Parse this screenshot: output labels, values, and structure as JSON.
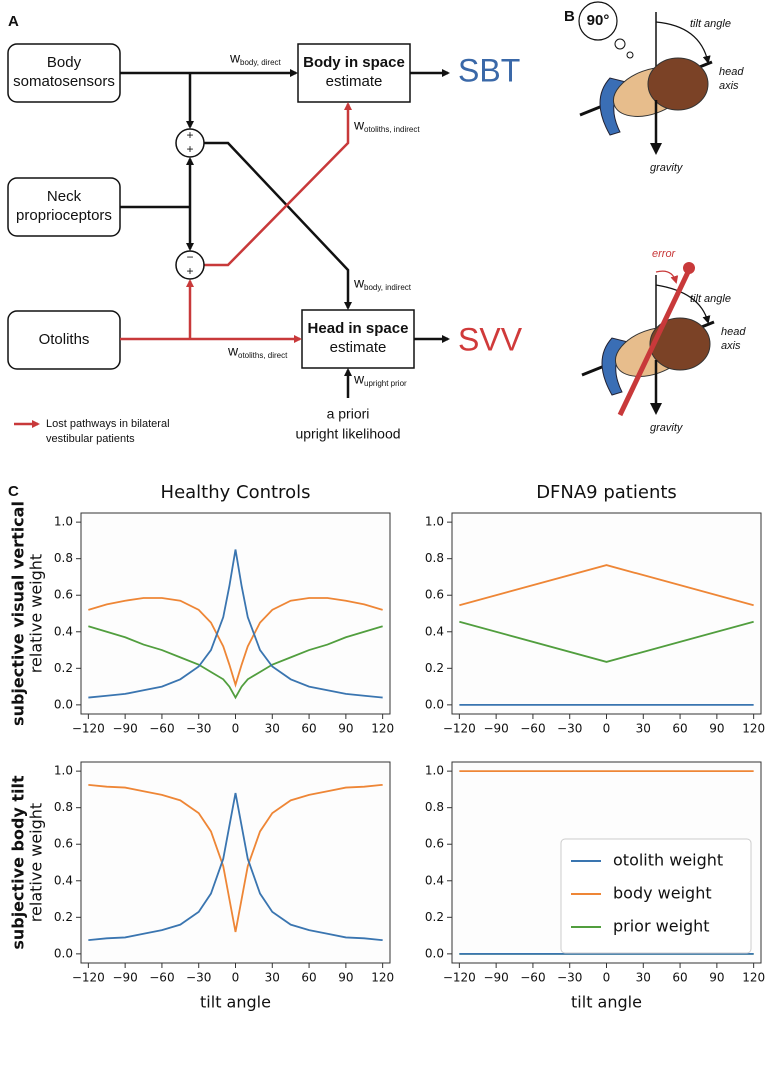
{
  "panel_a": {
    "letter": "A",
    "inputs": [
      [
        "Body",
        "somatosensors"
      ],
      [
        "Neck",
        "proprioceptors"
      ],
      [
        "Otoliths"
      ]
    ],
    "estimates": [
      {
        "bold": "Body in space",
        "text": "estimate",
        "output": "SBT"
      },
      {
        "bold": "Head in space",
        "text": "estimate",
        "output": "SVV"
      }
    ],
    "sum_signs": [
      [
        "+",
        "+"
      ],
      [
        "−",
        "+"
      ]
    ],
    "weights": [
      {
        "w": "w",
        "sub": "body, direct"
      },
      {
        "w": "w",
        "sub": "otoliths, indirect"
      },
      {
        "w": "w",
        "sub": "body, indirect"
      },
      {
        "w": "w",
        "sub": "otoliths, direct"
      },
      {
        "w": "w",
        "sub": "upright prior"
      }
    ],
    "prior": [
      "a priori",
      "upright likelihood"
    ],
    "legend": [
      "Lost pathways in bilateral",
      "vestibular patients"
    ]
  },
  "panel_b": {
    "letter": "B",
    "angle": "90°",
    "top": {
      "tilt": "tilt angle",
      "head_axis": [
        "head",
        "axis"
      ],
      "gravity": "gravity"
    },
    "bottom": {
      "error": "error",
      "tilt": "tilt angle",
      "head_axis": [
        "head",
        "axis"
      ],
      "gravity": "gravity"
    }
  },
  "panel_c": {
    "letter": "C"
  },
  "chart_data": [
    {
      "type": "line",
      "title": "Healthy Controls",
      "ylabel_bold": "subjective visual vertical",
      "ylabel": "relative weight",
      "x": [
        -120,
        -105,
        -90,
        -75,
        -60,
        -45,
        -30,
        -20,
        -10,
        -5,
        0,
        5,
        10,
        20,
        30,
        45,
        60,
        75,
        90,
        105,
        120
      ],
      "series": [
        {
          "name": "otolith weight",
          "color": "#3a75b0",
          "values": [
            0.04,
            0.05,
            0.06,
            0.08,
            0.1,
            0.14,
            0.21,
            0.3,
            0.48,
            0.65,
            0.85,
            0.65,
            0.48,
            0.3,
            0.21,
            0.14,
            0.1,
            0.08,
            0.06,
            0.05,
            0.04
          ]
        },
        {
          "name": "body weight",
          "color": "#ee8636",
          "values": [
            0.52,
            0.55,
            0.57,
            0.585,
            0.585,
            0.57,
            0.52,
            0.45,
            0.32,
            0.22,
            0.11,
            0.22,
            0.32,
            0.45,
            0.52,
            0.57,
            0.585,
            0.585,
            0.57,
            0.55,
            0.52
          ]
        },
        {
          "name": "prior weight",
          "color": "#519e3e",
          "values": [
            0.43,
            0.4,
            0.37,
            0.33,
            0.3,
            0.26,
            0.22,
            0.18,
            0.14,
            0.1,
            0.04,
            0.1,
            0.14,
            0.18,
            0.22,
            0.26,
            0.3,
            0.33,
            0.37,
            0.4,
            0.43
          ]
        }
      ],
      "xlim": [
        -126,
        126
      ],
      "ylim": [
        -0.05,
        1.05
      ],
      "xticks": [
        {
          "value": -120,
          "label": "−120"
        },
        {
          "value": -90,
          "label": "−90"
        },
        {
          "value": -60,
          "label": "−60"
        },
        {
          "value": -30,
          "label": "−30"
        },
        0,
        30,
        60,
        90,
        120
      ],
      "yticks": [
        {
          "value": 0,
          "label": "0.0"
        },
        0.2,
        0.4,
        0.6,
        0.8,
        {
          "value": 1,
          "label": "1.0"
        }
      ]
    },
    {
      "type": "line",
      "title": "DFNA9 patients",
      "x": [
        -120,
        0,
        120
      ],
      "series": [
        {
          "name": "otolith weight",
          "color": "#3a75b0",
          "values": [
            0,
            0,
            0
          ]
        },
        {
          "name": "body weight",
          "color": "#ee8636",
          "values": [
            0.545,
            0.765,
            0.545
          ]
        },
        {
          "name": "prior weight",
          "color": "#519e3e",
          "values": [
            0.455,
            0.235,
            0.455
          ]
        }
      ],
      "xlim": [
        -126,
        126
      ],
      "ylim": [
        -0.05,
        1.05
      ],
      "xticks": [
        {
          "value": -120,
          "label": "−120"
        },
        {
          "value": -90,
          "label": "−90"
        },
        {
          "value": -60,
          "label": "−60"
        },
        {
          "value": -30,
          "label": "−30"
        },
        0,
        30,
        60,
        90,
        120
      ],
      "yticks": [
        {
          "value": 0,
          "label": "0.0"
        },
        0.2,
        0.4,
        0.6,
        0.8,
        {
          "value": 1,
          "label": "1.0"
        }
      ]
    },
    {
      "type": "line",
      "ylabel_bold": "subjective body tilt",
      "ylabel": "relative weight",
      "xlabel": "tilt angle",
      "x": [
        -120,
        -105,
        -90,
        -75,
        -60,
        -45,
        -30,
        -20,
        -10,
        -5,
        0,
        5,
        10,
        20,
        30,
        45,
        60,
        75,
        90,
        105,
        120
      ],
      "series": [
        {
          "name": "otolith weight",
          "color": "#3a75b0",
          "values": [
            0.075,
            0.085,
            0.09,
            0.11,
            0.13,
            0.16,
            0.23,
            0.33,
            0.52,
            0.7,
            0.88,
            0.7,
            0.52,
            0.33,
            0.23,
            0.16,
            0.13,
            0.11,
            0.09,
            0.085,
            0.075
          ]
        },
        {
          "name": "body weight",
          "color": "#ee8636",
          "values": [
            0.925,
            0.915,
            0.91,
            0.89,
            0.87,
            0.84,
            0.77,
            0.67,
            0.48,
            0.3,
            0.12,
            0.3,
            0.48,
            0.67,
            0.77,
            0.84,
            0.87,
            0.89,
            0.91,
            0.915,
            0.925
          ]
        }
      ],
      "xlim": [
        -126,
        126
      ],
      "ylim": [
        -0.05,
        1.05
      ],
      "xticks": [
        {
          "value": -120,
          "label": "−120"
        },
        {
          "value": -90,
          "label": "−90"
        },
        {
          "value": -60,
          "label": "−60"
        },
        {
          "value": -30,
          "label": "−30"
        },
        0,
        30,
        60,
        90,
        120
      ],
      "yticks": [
        {
          "value": 0,
          "label": "0.0"
        },
        0.2,
        0.4,
        0.6,
        0.8,
        {
          "value": 1,
          "label": "1.0"
        }
      ]
    },
    {
      "type": "line",
      "xlabel": "tilt angle",
      "legend": "lower right",
      "x": [
        -120,
        120
      ],
      "series": [
        {
          "name": "otolith weight",
          "color": "#3a75b0",
          "values": [
            0,
            0
          ]
        },
        {
          "name": "body weight",
          "color": "#ee8636",
          "values": [
            1,
            1
          ]
        },
        {
          "name": "prior weight",
          "color": "#519e3e",
          "values": [
            0,
            0
          ]
        }
      ],
      "xlim": [
        -126,
        126
      ],
      "ylim": [
        -0.05,
        1.05
      ],
      "xticks": [
        {
          "value": -120,
          "label": "−120"
        },
        {
          "value": -90,
          "label": "−90"
        },
        {
          "value": -60,
          "label": "−60"
        },
        {
          "value": -30,
          "label": "−30"
        },
        0,
        30,
        60,
        90,
        120
      ],
      "yticks": [
        {
          "value": 0,
          "label": "0.0"
        },
        0.2,
        0.4,
        0.6,
        0.8,
        {
          "value": 1,
          "label": "1.0"
        }
      ]
    }
  ]
}
